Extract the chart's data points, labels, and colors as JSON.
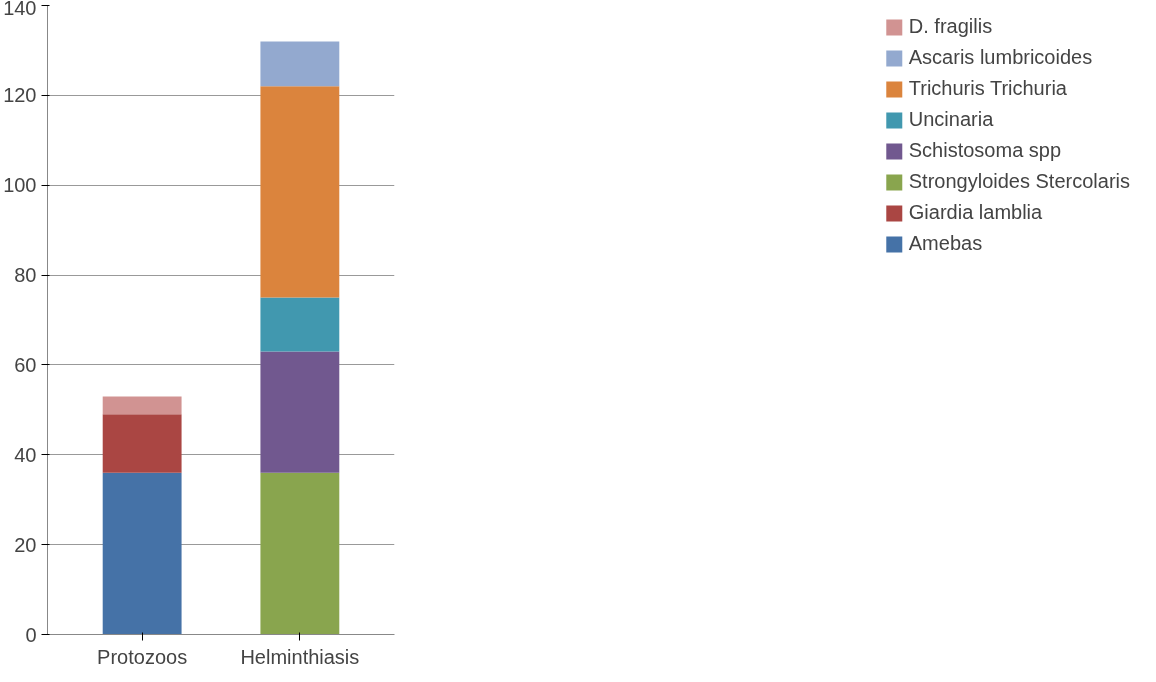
{
  "chart_data": {
    "type": "bar",
    "stacked": true,
    "categories": [
      "Protozoos",
      "Helminthiasis"
    ],
    "series": [
      {
        "name": "Amebas",
        "color": "#4572a7",
        "values": [
          36,
          null
        ]
      },
      {
        "name": "Giardia lamblia",
        "color": "#aa4643",
        "values": [
          13,
          null
        ]
      },
      {
        "name": "Strongyloides Stercolaris",
        "color": "#89a54e",
        "values": [
          null,
          36
        ]
      },
      {
        "name": "Schistosoma spp",
        "color": "#71588f",
        "values": [
          null,
          27
        ]
      },
      {
        "name": "Uncinaria",
        "color": "#4198af",
        "values": [
          null,
          12
        ]
      },
      {
        "name": "Trichuris Trichuria",
        "color": "#db843d",
        "values": [
          null,
          47
        ]
      },
      {
        "name": "Ascaris lumbricoides",
        "color": "#93a9cf",
        "values": [
          null,
          10
        ]
      },
      {
        "name": "D. fragilis",
        "color": "#d19392",
        "values": [
          4,
          null
        ]
      }
    ],
    "ylim": [
      0,
      140
    ],
    "yticks": [
      0,
      20,
      40,
      60,
      80,
      100,
      120,
      140
    ],
    "grid": "y",
    "legend": "right"
  }
}
